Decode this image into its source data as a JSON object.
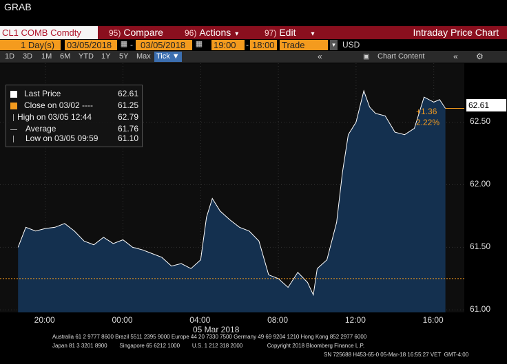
{
  "window": {
    "title": "GRAB"
  },
  "toolbar": {
    "ticker": "CL1 COMB Comdty",
    "compare_num": "95)",
    "compare_label": "Compare",
    "actions_num": "96)",
    "actions_label": "Actions",
    "edit_num": "97)",
    "edit_label": "Edit",
    "title": "Intraday Price Chart"
  },
  "params": {
    "period": "1  Day(s)",
    "start_date": "03/05/2018",
    "end_date": "03/05/2018",
    "start_time": "19:00",
    "end_time": "18:00",
    "field": "Trade",
    "currency": "USD"
  },
  "ranges": [
    "1D",
    "3D",
    "1M",
    "6M",
    "YTD",
    "1Y",
    "5Y",
    "Max"
  ],
  "tick_label": "Tick ▼",
  "chart_content_label": "Chart Content",
  "legend": [
    {
      "label": "Last Price",
      "value": "62.61",
      "color": "#ffffff"
    },
    {
      "label": "Close on 03/02 ----",
      "value": "61.25",
      "color": "#f49b1e"
    },
    {
      "label": "High on 03/05 12:44",
      "value": "62.79",
      "color": "#aaaaaa"
    },
    {
      "label": "Average",
      "value": "61.76",
      "color": "#aaaaaa"
    },
    {
      "label": "Low on 03/05 09:59",
      "value": "61.10",
      "color": "#aaaaaa"
    }
  ],
  "last_price_tag": "62.61",
  "change_abs": "+1.36",
  "change_pct": "2.22%",
  "chart_data": {
    "type": "area",
    "title": "",
    "xlabel": "05 Mar 2018",
    "ylabel": "",
    "x_ticks": [
      "20:00",
      "00:00",
      "04:00",
      "08:00",
      "12:00",
      "16:00"
    ],
    "y_ticks": [
      61.0,
      61.5,
      62.0,
      62.5
    ],
    "ylim": [
      60.98,
      62.97
    ],
    "reference_line": {
      "label": "Close on 03/02",
      "value": 61.25,
      "color": "#f49b1e"
    },
    "series": [
      {
        "name": "Last Price",
        "color": "#ffffff",
        "fill": "#14304f",
        "x": [
          18.6,
          19.0,
          19.5,
          20.0,
          20.5,
          21.0,
          21.5,
          22.0,
          22.5,
          23.0,
          23.5,
          0.0,
          0.5,
          1.0,
          1.5,
          2.0,
          2.5,
          3.0,
          3.5,
          4.0,
          4.3,
          4.6,
          5.0,
          5.5,
          6.0,
          6.5,
          7.0,
          7.5,
          8.0,
          8.5,
          9.0,
          9.5,
          9.8,
          10.0,
          10.5,
          11.0,
          11.3,
          11.6,
          12.0,
          12.4,
          12.7,
          13.0,
          13.5,
          14.0,
          14.5,
          15.0,
          15.5,
          16.0,
          16.3,
          16.6
        ],
        "y": [
          61.5,
          61.66,
          61.63,
          61.65,
          61.66,
          61.69,
          61.63,
          61.55,
          61.52,
          61.58,
          61.53,
          61.56,
          61.5,
          61.48,
          61.45,
          61.42,
          61.35,
          61.37,
          61.33,
          61.4,
          61.74,
          61.89,
          61.79,
          61.72,
          61.66,
          61.63,
          61.55,
          61.28,
          61.25,
          61.18,
          61.3,
          61.22,
          61.12,
          61.33,
          61.4,
          61.7,
          62.1,
          62.4,
          62.5,
          62.75,
          62.62,
          62.57,
          62.55,
          62.42,
          62.4,
          62.45,
          62.7,
          62.66,
          62.68,
          62.61
        ]
      }
    ]
  },
  "footer": {
    "line1": "Australia 61 2 9777 8600 Brazil 5511 2395 9000 Europe 44 20 7330 7500 Germany 49 69 9204 1210 Hong Kong 852 2977 6000",
    "line2": "Japan 81 3 3201 8900        Singapore 65 6212 1000        U.S. 1 212 318 2000                Copyright 2018 Bloomberg Finance L.P.",
    "line3": "SN 725688 H453-65-0 05-Mar-18 16:55:27 VET  GMT-4:00"
  }
}
